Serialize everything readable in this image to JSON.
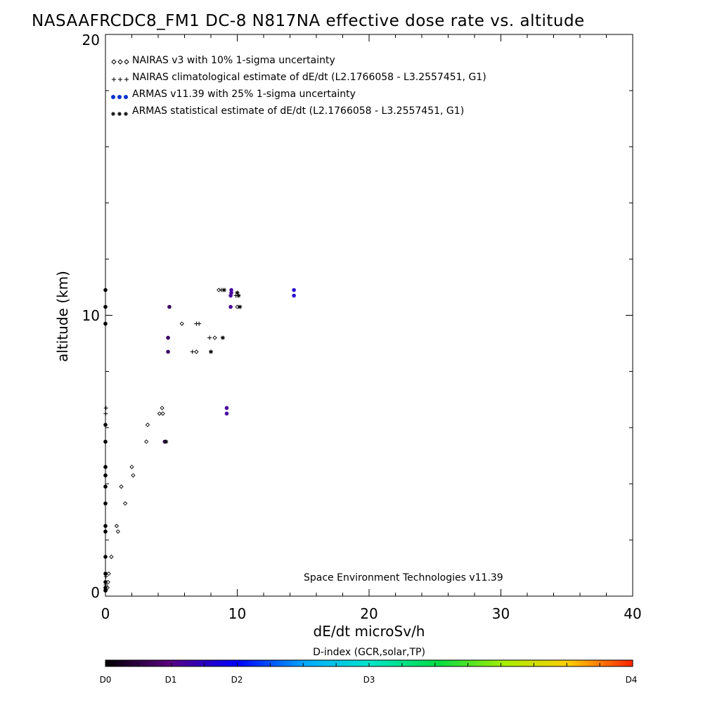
{
  "chart_data": {
    "type": "scatter",
    "title": "NASAAFRCDC8_FM1 DC-8   N817NA effective dose rate vs. altitude",
    "xlabel": "dE/dt microSv/h",
    "ylabel": "altitude (km)",
    "xlim": [
      0,
      40
    ],
    "ylim": [
      0,
      20
    ],
    "x_ticks": [
      "0",
      "10",
      "20",
      "30",
      "40"
    ],
    "y_ticks": [
      "0",
      "10",
      "20"
    ],
    "legend_position": "top-left",
    "annotation": "Space Environment Technologies v11.39",
    "series": [
      {
        "name": "NAIRAS v3 with 10% 1-sigma uncertainty",
        "symbol": "diamond",
        "color": "#000000",
        "points": [
          [
            0.15,
            0.3
          ],
          [
            0.2,
            0.5
          ],
          [
            0.25,
            0.8
          ],
          [
            0.45,
            1.4
          ],
          [
            0.85,
            2.5
          ],
          [
            0.95,
            2.3
          ],
          [
            1.2,
            3.9
          ],
          [
            1.5,
            3.3
          ],
          [
            2.0,
            4.6
          ],
          [
            2.1,
            4.3
          ],
          [
            3.1,
            5.5
          ],
          [
            3.2,
            6.1
          ],
          [
            4.1,
            6.5
          ],
          [
            4.35,
            6.5
          ],
          [
            4.3,
            6.7
          ],
          [
            5.8,
            9.7
          ],
          [
            6.9,
            8.7
          ],
          [
            8.3,
            9.2
          ],
          [
            8.6,
            10.9
          ],
          [
            10.0,
            10.3
          ]
        ]
      },
      {
        "name": "NAIRAS climatological estimate of dE/dt (L2.1766058 - L3.2557451, G1)",
        "symbol": "plus",
        "color": "#000000",
        "points": [
          [
            0.02,
            0.2
          ],
          [
            0.03,
            0.4
          ],
          [
            0.04,
            0.7
          ],
          [
            0.02,
            6.5
          ],
          [
            0.04,
            6.7
          ],
          [
            6.6,
            8.7
          ],
          [
            6.9,
            9.7
          ],
          [
            7.1,
            9.7
          ],
          [
            7.9,
            9.2
          ],
          [
            8.8,
            10.9
          ],
          [
            9.9,
            10.7
          ]
        ]
      },
      {
        "name": "ARMAS v11.39 with 25% 1-sigma uncertainty",
        "symbol": "dot",
        "color": "#0000ff",
        "points": [
          [
            0.0,
            0.2
          ],
          [
            0.0,
            0.3
          ],
          [
            0.0,
            0.5
          ],
          [
            0.0,
            0.8
          ],
          [
            0.0,
            1.4
          ],
          [
            0.0,
            2.3
          ],
          [
            0.0,
            2.5
          ],
          [
            0.0,
            3.3
          ],
          [
            0.0,
            3.9
          ],
          [
            0.0,
            4.3
          ],
          [
            0.0,
            4.6
          ],
          [
            0.0,
            5.5
          ],
          [
            0.0,
            6.1
          ],
          [
            0.0,
            9.7
          ],
          [
            0.0,
            10.3
          ],
          [
            0.0,
            10.9
          ],
          [
            4.5,
            5.5
          ],
          [
            4.75,
            8.7
          ],
          [
            4.75,
            9.2
          ],
          [
            4.85,
            10.3
          ],
          [
            9.2,
            6.5
          ],
          [
            9.2,
            6.7
          ],
          [
            9.5,
            10.3
          ],
          [
            9.5,
            10.7
          ],
          [
            9.55,
            10.8
          ],
          [
            9.55,
            10.9
          ],
          [
            14.3,
            10.7
          ],
          [
            14.3,
            10.9
          ]
        ]
      },
      {
        "name": "ARMAS statistical estimate of dE/dt (L2.1766058 - L3.2557451, G1)",
        "symbol": "asterisk",
        "color": "#000000",
        "points": [
          [
            4.6,
            5.5
          ],
          [
            8.0,
            8.7
          ],
          [
            8.9,
            9.2
          ],
          [
            9.0,
            10.9
          ],
          [
            10.0,
            10.8
          ],
          [
            10.1,
            10.7
          ],
          [
            10.2,
            10.3
          ]
        ]
      }
    ],
    "colorbar": {
      "title": "D-index (GCR,solar,TP)",
      "labels": [
        "D0",
        "D1",
        "D2",
        "D3",
        "D4"
      ],
      "label_positions": [
        0,
        0.25,
        0.5,
        1,
        4
      ]
    }
  }
}
